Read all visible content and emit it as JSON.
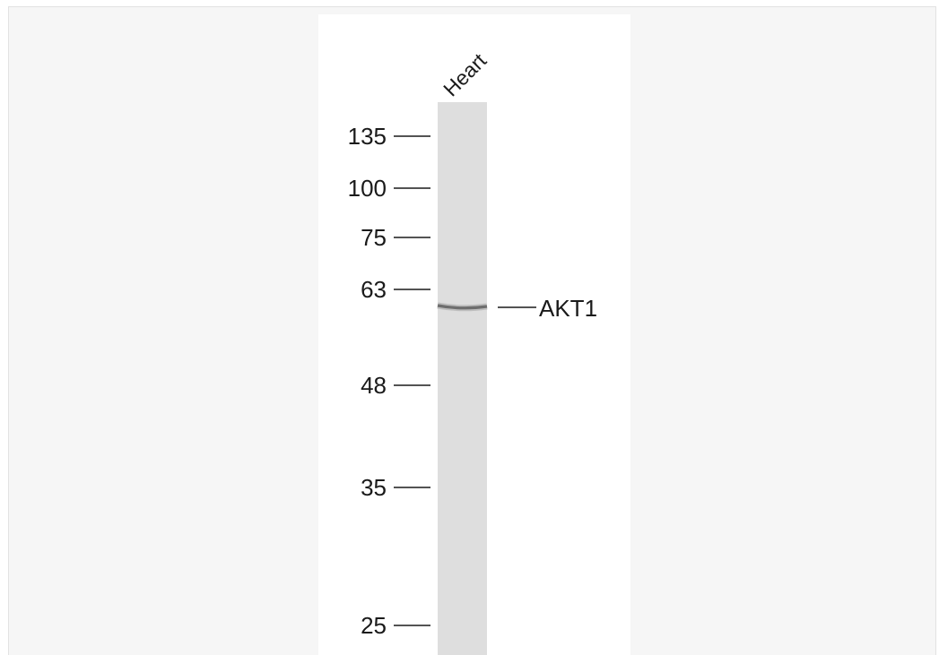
{
  "lane": {
    "label": "Heart"
  },
  "band": {
    "label": "AKT1",
    "marker": "63"
  },
  "markers": [
    "135",
    "100",
    "75",
    "63",
    "48",
    "35",
    "25"
  ],
  "colors": {
    "frame_background": "#f6f6f6",
    "panel_background": "#ffffff",
    "lane": "#dedede",
    "band": "#6e6e6e",
    "text": "#1a1a1a"
  }
}
